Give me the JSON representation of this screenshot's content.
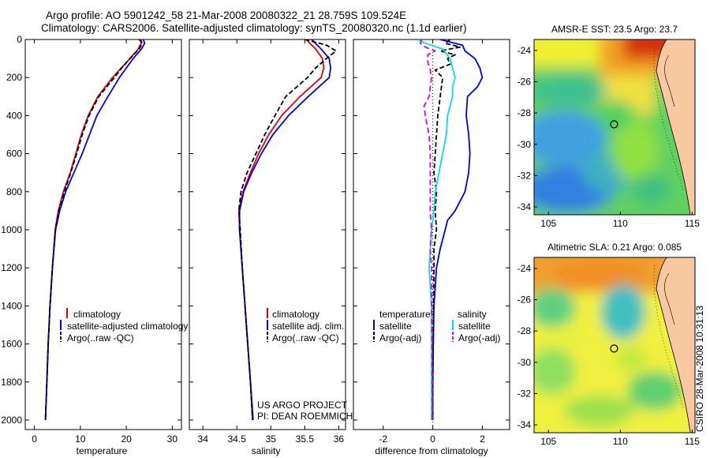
{
  "header": {
    "line1": "Argo profile: AO 5901242_58 21-Mar-2008 20080322_21 28.759S 109.524E",
    "line2": "Climatology: CARS2006. Satellite-adjusted climatology: synTS_20080320.nc (1.1d earlier)"
  },
  "footer": {
    "project": "US ARGO PROJECT",
    "pi": "PI: DEAN ROEMMICH",
    "stamp": "CSIRO 28-Mar-2008 10:31:13"
  },
  "colors": {
    "climatology": "#e00000",
    "satellite": "#0000e0",
    "argo": "#000000",
    "sal_satellite": "#00e0e0",
    "sal_argo": "#e000e0",
    "land": "#f8c8a0"
  },
  "chart_data": [
    {
      "type": "line",
      "id": "temperature",
      "xlabel": "temperature",
      "xlim": [
        -2,
        32
      ],
      "ylim": [
        0,
        2050
      ],
      "xticks": [
        0,
        10,
        20,
        30
      ],
      "yticks": [
        0,
        200,
        400,
        600,
        800,
        1000,
        1200,
        1400,
        1600,
        1800,
        2000
      ],
      "legend": [
        "climatology",
        "satellite-adjusted climatology",
        "Argo(..raw -QC)"
      ],
      "series": [
        {
          "name": "climatology",
          "color": "#e00000",
          "dash": "",
          "depth": [
            0,
            20,
            50,
            100,
            150,
            200,
            300,
            400,
            500,
            600,
            700,
            800,
            900,
            1000,
            1200,
            1400,
            1600,
            1800,
            2000
          ],
          "values": [
            23.3,
            23.2,
            22.6,
            20.8,
            18.9,
            17.0,
            13.8,
            11.7,
            10.2,
            9.0,
            7.8,
            6.3,
            5.2,
            4.5,
            3.9,
            3.4,
            3.0,
            2.7,
            2.4
          ]
        },
        {
          "name": "satellite-adjusted climatology",
          "color": "#0000e0",
          "dash": "",
          "depth": [
            0,
            20,
            50,
            100,
            150,
            200,
            300,
            400,
            500,
            600,
            700,
            800,
            900,
            1000,
            1200,
            1400,
            1600,
            1800,
            2000
          ],
          "values": [
            23.7,
            24.0,
            23.3,
            21.5,
            20.0,
            18.5,
            16.0,
            13.6,
            12.0,
            10.4,
            8.6,
            6.8,
            5.5,
            4.6,
            3.9,
            3.4,
            3.0,
            2.7,
            2.4
          ]
        },
        {
          "name": "Argo(..raw -QC)",
          "color": "#000000",
          "dash": "6,3",
          "depth": [
            0,
            20,
            50,
            100,
            150,
            200,
            300,
            400,
            500,
            600,
            700,
            800,
            900,
            1000,
            1200,
            1400,
            1600,
            1800,
            2000
          ],
          "values": [
            22.8,
            23.5,
            22.8,
            20.8,
            19.0,
            17.4,
            14.0,
            11.9,
            10.4,
            9.2,
            7.9,
            6.5,
            5.3,
            4.6,
            3.9,
            3.4,
            3.0,
            2.7,
            2.4
          ]
        }
      ]
    },
    {
      "type": "line",
      "id": "salinity",
      "xlabel": "salinity",
      "xlim": [
        33.8,
        36.1
      ],
      "ylim": [
        0,
        2050
      ],
      "xticks": [
        34,
        34.5,
        35,
        35.5,
        36
      ],
      "legend": [
        "climatology",
        "satellite adj. clim.",
        "Argo(..raw -QC)"
      ],
      "series": [
        {
          "name": "climatology",
          "color": "#e00000",
          "dash": "",
          "depth": [
            0,
            50,
            100,
            150,
            200,
            300,
            400,
            500,
            600,
            700,
            800,
            900,
            1000,
            1200,
            1400,
            1600,
            1800,
            2000
          ],
          "values": [
            35.52,
            35.66,
            35.76,
            35.78,
            35.74,
            35.43,
            35.16,
            34.97,
            34.82,
            34.7,
            34.59,
            34.53,
            34.54,
            34.58,
            34.62,
            34.66,
            34.7,
            34.73
          ]
        },
        {
          "name": "satellite adj. clim.",
          "color": "#0000e0",
          "dash": "",
          "depth": [
            0,
            50,
            100,
            150,
            200,
            300,
            400,
            500,
            600,
            700,
            800,
            900,
            1000,
            1200,
            1400,
            1600,
            1800,
            2000
          ],
          "values": [
            35.6,
            35.74,
            35.86,
            35.88,
            35.86,
            35.55,
            35.26,
            35.03,
            34.86,
            34.72,
            34.6,
            34.54,
            34.54,
            34.58,
            34.62,
            34.66,
            34.7,
            34.74
          ]
        },
        {
          "name": "Argo(..raw -QC)",
          "color": "#000000",
          "dash": "6,3",
          "depth": [
            0,
            30,
            60,
            100,
            150,
            200,
            300,
            400,
            500,
            600,
            700,
            800,
            900,
            1000,
            1200,
            1400,
            1600,
            1800,
            2000
          ],
          "values": [
            35.5,
            35.82,
            35.96,
            35.82,
            35.66,
            35.54,
            35.22,
            35.06,
            34.91,
            34.78,
            34.65,
            34.56,
            34.53,
            34.55,
            34.58,
            34.62,
            34.66,
            34.7,
            34.73
          ]
        }
      ]
    },
    {
      "type": "line",
      "id": "difference",
      "xlabel": "difference from climatology",
      "xlim": [
        -3.2,
        3.1
      ],
      "ylim": [
        0,
        2050
      ],
      "xticks": [
        -2,
        0,
        2
      ],
      "legend": {
        "temperature_title": "temperature",
        "salinity_title": "salinity",
        "temperature": [
          "satellite",
          "Argo(-adj)"
        ],
        "salinity": [
          "satellite",
          "Argo(-adj)"
        ]
      },
      "series": [
        {
          "name": "temperature satellite",
          "color": "#0000e0",
          "dash": "",
          "depth": [
            0,
            30,
            60,
            100,
            150,
            200,
            250,
            300,
            400,
            500,
            600,
            700,
            800,
            900,
            950,
            1000,
            1100,
            1200,
            1400,
            1600,
            1800,
            2000
          ],
          "values": [
            0.3,
            1.2,
            1.3,
            1.7,
            1.9,
            2.0,
            1.8,
            1.4,
            1.35,
            1.45,
            1.5,
            1.45,
            1.3,
            0.9,
            0.6,
            0.5,
            0.3,
            0.15,
            0.05,
            0.02,
            0.0,
            0.0
          ]
        },
        {
          "name": "temperature Argo(-adj)",
          "color": "#000000",
          "dash": "6,3",
          "depth": [
            0,
            20,
            40,
            60,
            80,
            100,
            130,
            160,
            200,
            300,
            400,
            500,
            600,
            700,
            800,
            900,
            1000,
            1100,
            1200,
            1400,
            1600,
            1800,
            2000
          ],
          "values": [
            0.7,
            0.5,
            1.1,
            0.3,
            0.9,
            0.6,
            0.7,
            0.1,
            0.4,
            0.3,
            0.2,
            0.15,
            0.1,
            0.05,
            0.15,
            0.1,
            0.15,
            0.05,
            0.05,
            0.03,
            0.02,
            0.0,
            0.0
          ]
        },
        {
          "name": "salinity satellite",
          "color": "#00e0e0",
          "dash": "",
          "depth": [
            0,
            20,
            50,
            100,
            150,
            200,
            250,
            300,
            400,
            500,
            600,
            700,
            800,
            900,
            1000,
            1100,
            1200,
            1400,
            1600,
            1800,
            2000
          ],
          "values": [
            -0.6,
            -0.3,
            0.4,
            0.7,
            0.8,
            0.9,
            0.8,
            0.8,
            0.6,
            0.55,
            0.4,
            0.25,
            0.1,
            0.05,
            -0.05,
            -0.1,
            -0.15,
            -0.05,
            -0.05,
            -0.05,
            -0.05
          ]
        },
        {
          "name": "salinity Argo(-adj)",
          "color": "#e000e0",
          "dash": "7,4",
          "depth": [
            0,
            20,
            40,
            60,
            80,
            120,
            160,
            200,
            250,
            300,
            350,
            400,
            500,
            600,
            700,
            800,
            900,
            1000,
            1100,
            1200,
            1400,
            1600,
            1800,
            2000
          ],
          "values": [
            -0.45,
            -0.5,
            -0.3,
            0.1,
            -0.2,
            -0.2,
            -0.1,
            -0.05,
            -0.1,
            -0.15,
            -0.35,
            -0.3,
            -0.15,
            -0.1,
            -0.1,
            -0.1,
            -0.1,
            -0.05,
            -0.1,
            -0.05,
            -0.05,
            -0.03,
            -0.02,
            -0.02
          ]
        }
      ]
    }
  ],
  "maps": [
    {
      "id": "sst",
      "title": "AMSR-E SST: 23.5 Argo: 23.7",
      "lon_ticks": [
        105,
        110,
        115
      ],
      "lat_ticks": [
        -24,
        -26,
        -28,
        -30,
        -32,
        -34
      ],
      "lon_range": [
        104,
        115.2
      ],
      "lat_range": [
        -23.3,
        -34.5
      ],
      "argo_lon": 109.5,
      "argo_lat": -28.76
    },
    {
      "id": "sla",
      "title": "Altimetric SLA: 0.21 Argo: 0.085",
      "lon_ticks": [
        105,
        110,
        115
      ],
      "lat_ticks": [
        -24,
        -26,
        -28,
        -30,
        -32,
        -34
      ],
      "lon_range": [
        104,
        115.2
      ],
      "lat_range": [
        -23.3,
        -34.5
      ],
      "argo_lon": 109.5,
      "argo_lat": -28.76
    }
  ]
}
